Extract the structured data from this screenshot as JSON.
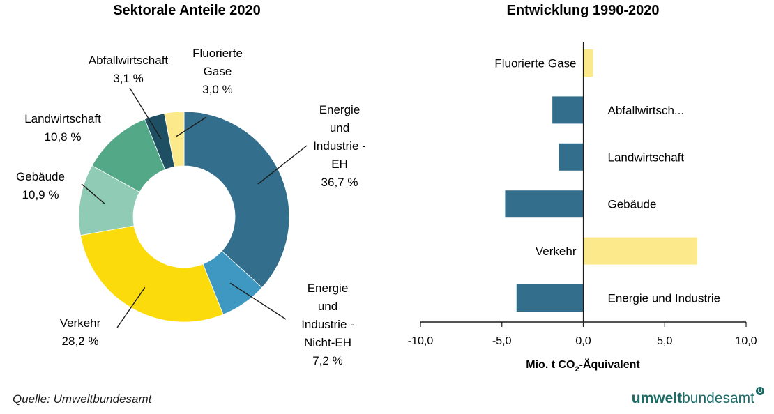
{
  "chart_data": [
    {
      "type": "donut",
      "title": "Sektorale Anteile 2020",
      "slices": [
        {
          "name": "Energie und Industrie - EH",
          "label_lines": [
            "Energie",
            "und",
            "Industrie -",
            "EH"
          ],
          "value_label": "36,7 %",
          "value": 36.7,
          "color": "#336f8c"
        },
        {
          "name": "Energie und Industrie - Nicht-EH",
          "label_lines": [
            "Energie",
            "und",
            "Industrie -",
            "Nicht-EH"
          ],
          "value_label": "7,2 %",
          "value": 7.2,
          "color": "#3f98c1"
        },
        {
          "name": "Verkehr",
          "label_lines": [
            "Verkehr"
          ],
          "value_label": "28,2 %",
          "value": 28.2,
          "color": "#fcdb0c"
        },
        {
          "name": "Gebäude",
          "label_lines": [
            "Gebäude"
          ],
          "value_label": "10,9 %",
          "value": 10.9,
          "color": "#90cbb5"
        },
        {
          "name": "Landwirtschaft",
          "label_lines": [
            "Landwirtschaft"
          ],
          "value_label": "10,8 %",
          "value": 10.8,
          "color": "#53a987"
        },
        {
          "name": "Abfallwirtschaft",
          "label_lines": [
            "Abfallwirtschaft"
          ],
          "value_label": "3,1 %",
          "value": 3.1,
          "color": "#1f4f63"
        },
        {
          "name": "Fluorierte Gase",
          "label_lines": [
            "Fluorierte",
            "Gase"
          ],
          "value_label": "3,0 %",
          "value": 3.0,
          "color": "#fbe98b"
        }
      ]
    },
    {
      "type": "bar",
      "orientation": "horizontal",
      "title": "Entwicklung 1990-2020",
      "xlabel_main": "Mio. t CO",
      "xlabel_sub": "2",
      "xlabel_tail": "-Äquivalent",
      "xlim": [
        -10,
        10
      ],
      "ticks": [
        -10,
        -5,
        0,
        5,
        10
      ],
      "tick_labels": [
        "-10,0",
        "-5,0",
        "0,0",
        "5,0",
        "10,0"
      ],
      "categories": [
        "Fluorierte Gase",
        "Abfallwirtsch...",
        "Landwirtschaft",
        "Gebäude",
        "Verkehr",
        "Energie und Industrie"
      ],
      "values": [
        0.6,
        -1.9,
        -1.5,
        -4.8,
        7.0,
        -4.1
      ],
      "colors": [
        "#fbe98b",
        "#336f8c",
        "#336f8c",
        "#336f8c",
        "#fbe98b",
        "#336f8c"
      ]
    }
  ],
  "footer": {
    "source": "Quelle: Umweltbundesamt",
    "brand_bold": "umwelt",
    "brand_light": "bundesamt",
    "brand_mark": "U"
  }
}
